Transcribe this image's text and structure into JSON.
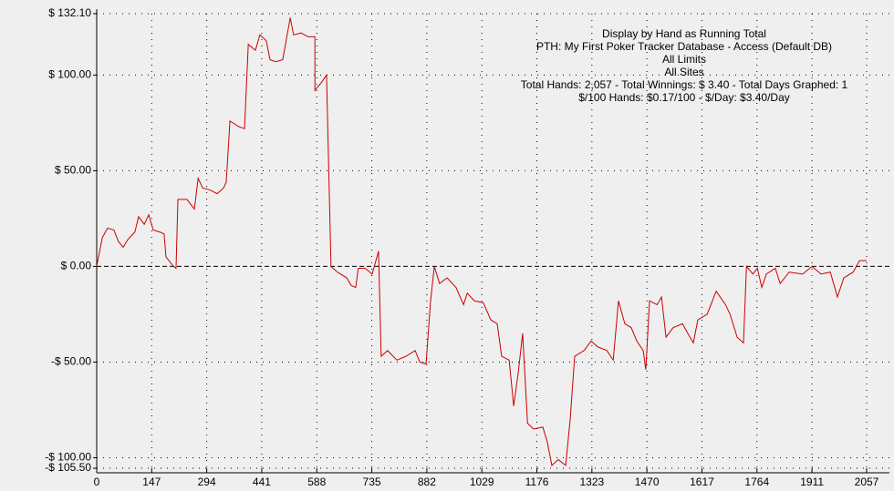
{
  "chart_data": {
    "type": "line",
    "annotations": [
      "Display by Hand as Running Total",
      "PTH: My First Poker Tracker Database - Access (Default DB)",
      "All Limits",
      "All Sites",
      "Total Hands: 2,057 - Total Winnings: $ 3.40 - Total Days Graphed: 1",
      "$/100 Hands: $0.17/100 - $/Day: $3.40/Day"
    ],
    "x": [
      0,
      15,
      29,
      46,
      58,
      71,
      83,
      102,
      112,
      127,
      139,
      151,
      168,
      180,
      185,
      205,
      212,
      217,
      241,
      261,
      271,
      283,
      302,
      322,
      339,
      346,
      356,
      380,
      395,
      405,
      424,
      436,
      453,
      463,
      478,
      497,
      517,
      526,
      546,
      565,
      583,
      583,
      600,
      614,
      626,
      643,
      668,
      680,
      692,
      699,
      717,
      736,
      753,
      760,
      777,
      802,
      826,
      851,
      863,
      880,
      892,
      902,
      916,
      936,
      960,
      980,
      990,
      1009,
      1033,
      1053,
      1070,
      1082,
      1102,
      1114,
      1126,
      1138,
      1151,
      1167,
      1192,
      1204,
      1216,
      1233,
      1253,
      1265,
      1277,
      1302,
      1321,
      1338,
      1363,
      1380,
      1394,
      1411,
      1428,
      1443,
      1460,
      1467,
      1477,
      1497,
      1509,
      1521,
      1540,
      1565,
      1582,
      1594,
      1606,
      1631,
      1655,
      1680,
      1692,
      1711,
      1728,
      1736,
      1753,
      1765,
      1777,
      1789,
      1813,
      1826,
      1850,
      1886,
      1911,
      1935,
      1960,
      1979,
      1996,
      2021,
      2038,
      2057
    ],
    "series": [
      {
        "color": "#cc0000",
        "values": [
          0,
          15,
          20,
          19,
          13,
          10,
          14,
          18,
          26,
          22,
          27,
          19,
          18,
          17,
          5,
          0,
          -1,
          35,
          35,
          30,
          46,
          41,
          40,
          38,
          41,
          44,
          76,
          73,
          72,
          116,
          113,
          121,
          118,
          108,
          107,
          108,
          130,
          121,
          122,
          120,
          120,
          92,
          96,
          100,
          0,
          -3,
          -6,
          -10,
          -11,
          -1,
          -1,
          -4,
          8,
          -47,
          -44,
          -49,
          -47,
          -44,
          -50,
          -51,
          -18,
          0,
          -9,
          -6,
          -11,
          -20,
          -14,
          -18,
          -19,
          -28,
          -30,
          -47,
          -49,
          -73,
          -56,
          -35,
          -82,
          -85,
          -84,
          -92,
          -104,
          -101,
          -104,
          -80,
          -47,
          -44,
          -39,
          -42,
          -44,
          -49,
          -18,
          -30,
          -32,
          -39,
          -44,
          -54,
          -18,
          -20,
          -16,
          -37,
          -32,
          -30,
          -36,
          -40,
          -28,
          -25,
          -13,
          -20,
          -25,
          -37,
          -40,
          0,
          -4,
          -1,
          -11,
          -4,
          -1,
          -9,
          -3,
          -4,
          0,
          -4,
          -3,
          -16,
          -6,
          -3,
          3,
          3
        ]
      }
    ],
    "xlim": [
      0,
      2057
    ],
    "xticks": [
      0,
      147,
      294,
      441,
      588,
      735,
      882,
      1029,
      1176,
      1323,
      1470,
      1617,
      1764,
      1911,
      2057
    ],
    "ylim": [
      -105.5,
      132.1
    ],
    "yticks": [
      {
        "value": 132.1,
        "label": "$ 132.10"
      },
      {
        "value": 100,
        "label": "$ 100.00"
      },
      {
        "value": 50,
        "label": "$ 50.00"
      },
      {
        "value": 0,
        "label": "$ 0.00"
      },
      {
        "value": -50,
        "label": "-$ 50.00"
      },
      {
        "value": -100,
        "label": "-$ 100.00"
      },
      {
        "value": -105.5,
        "label": "-$ 105.50"
      }
    ],
    "grid": true
  }
}
